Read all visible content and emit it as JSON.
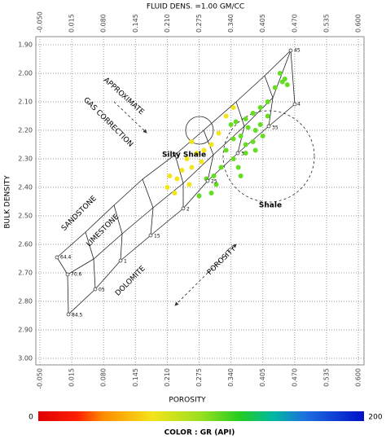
{
  "chart_data": {
    "type": "scatter",
    "title": "FLUID DENS. =1.00 GM/CC",
    "x_label": "POROSITY",
    "y_label": "BULK DENSITY",
    "xlim": [
      -0.05,
      0.6
    ],
    "ylim": [
      1.9,
      3.0
    ],
    "y_inverted": true,
    "grid": true,
    "xticks": [
      {
        "value": -0.05,
        "label": "-0.050"
      },
      {
        "value": 0.015,
        "label": "0.015"
      },
      {
        "value": 0.08,
        "label": "0.080"
      },
      {
        "value": 0.145,
        "label": "0.145"
      },
      {
        "value": 0.21,
        "label": "0.210"
      },
      {
        "value": 0.275,
        "label": "0.275"
      },
      {
        "value": 0.34,
        "label": "0.340"
      },
      {
        "value": 0.405,
        "label": "0.405"
      },
      {
        "value": 0.47,
        "label": "0.470"
      },
      {
        "value": 0.535,
        "label": "0.535"
      },
      {
        "value": 0.6,
        "label": "0.600"
      }
    ],
    "yticks": [
      {
        "value": 1.9,
        "label": "1.90"
      },
      {
        "value": 2.0,
        "label": "2.00"
      },
      {
        "value": 2.1,
        "label": "2.10"
      },
      {
        "value": 2.2,
        "label": "2.20"
      },
      {
        "value": 2.3,
        "label": "2.30"
      },
      {
        "value": 2.4,
        "label": "2.40"
      },
      {
        "value": 2.5,
        "label": "2.50"
      },
      {
        "value": 2.6,
        "label": "2.60"
      },
      {
        "value": 2.7,
        "label": "2.70"
      },
      {
        "value": 2.8,
        "label": "2.80"
      },
      {
        "value": 2.9,
        "label": "2.90"
      },
      {
        "value": 3.0,
        "label": "3.00"
      }
    ],
    "series": [
      {
        "color": "#66dd22",
        "x": [
          0.44,
          0.45,
          0.455,
          0.445,
          0.43,
          0.415,
          0.4,
          0.385,
          0.37,
          0.35,
          0.375,
          0.39,
          0.36,
          0.345,
          0.37,
          0.33,
          0.345,
          0.32,
          0.355,
          0.305,
          0.29,
          0.31,
          0.3,
          0.275,
          0.37,
          0.385,
          0.4,
          0.415,
          0.34,
          0.39,
          0.36,
          0.405
        ],
        "y": [
          2.0,
          2.02,
          2.04,
          2.03,
          2.05,
          2.1,
          2.12,
          2.14,
          2.16,
          2.17,
          2.19,
          2.2,
          2.22,
          2.23,
          2.25,
          2.27,
          2.3,
          2.33,
          2.33,
          2.36,
          2.37,
          2.39,
          2.42,
          2.43,
          2.28,
          2.24,
          2.18,
          2.15,
          2.18,
          2.27,
          2.36,
          2.22
        ]
      },
      {
        "color": "#f2e51a",
        "x": [
          0.215,
          0.23,
          0.21,
          0.24,
          0.26,
          0.255,
          0.225,
          0.28,
          0.25,
          0.27,
          0.285,
          0.3,
          0.315,
          0.33,
          0.345,
          0.26
        ],
        "y": [
          2.36,
          2.37,
          2.4,
          2.34,
          2.33,
          2.39,
          2.42,
          2.31,
          2.3,
          2.28,
          2.27,
          2.25,
          2.21,
          2.15,
          2.12,
          2.24
        ]
      }
    ],
    "annotations": [
      "APPROXIMATE",
      "GAS CORRECTION",
      "Silty Shale",
      "Shale",
      "SANDSTONE",
      "LIMESTONE",
      "DOLOMITE",
      "POROSITY"
    ],
    "line_labels": [
      "45",
      "4",
      "35",
      "3",
      "25",
      "2",
      "15",
      "1",
      "05",
      "64.4",
      "70.6",
      "84.5"
    ],
    "colorbar": {
      "label": "COLOR : GR (API)",
      "min": 0,
      "max": 200
    }
  }
}
